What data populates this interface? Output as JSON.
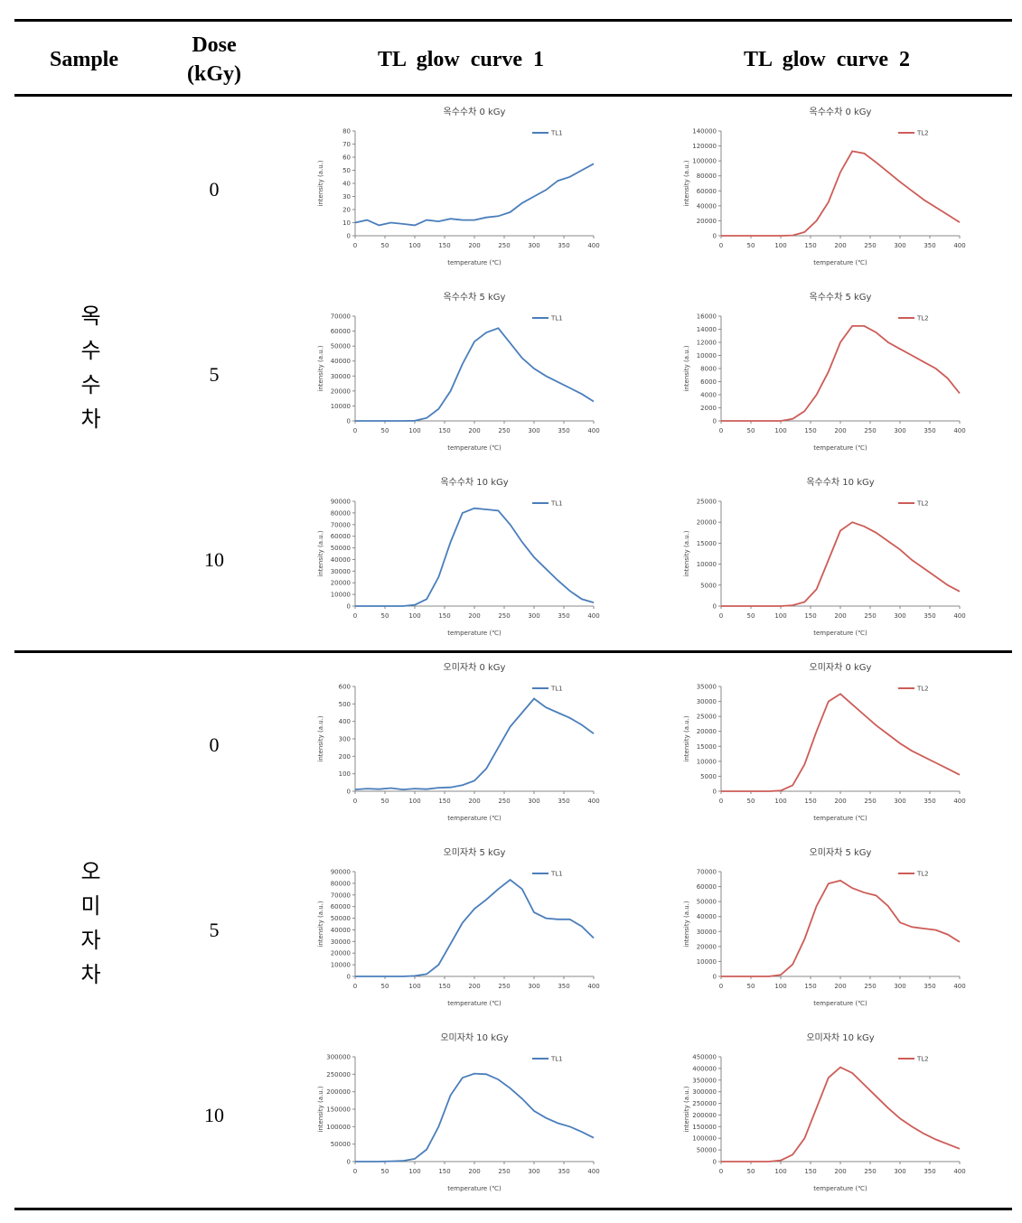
{
  "table": {
    "headers": [
      "Sample",
      "Dose (kGy)",
      "TL glow curve 1",
      "TL glow curve 2"
    ],
    "groups": [
      {
        "sample": "옥수수차",
        "doses": [
          "0",
          "5",
          "10"
        ]
      },
      {
        "sample": "오미자차",
        "doses": [
          "0",
          "5",
          "10"
        ]
      }
    ]
  },
  "chart_data": [
    {
      "type": "line",
      "title": "옥수수차 0 kGy",
      "x_label": "temperature (℃)",
      "y_label": "intensity (a.u.)",
      "x": [
        0,
        20,
        40,
        60,
        80,
        100,
        120,
        140,
        160,
        180,
        200,
        220,
        240,
        260,
        280,
        300,
        320,
        340,
        360,
        380,
        400
      ],
      "xlim": [
        0,
        400
      ],
      "xticks": [
        0,
        50,
        100,
        150,
        200,
        250,
        300,
        350,
        400
      ],
      "ylim": [
        0,
        80
      ],
      "yticks": [
        0,
        10,
        20,
        30,
        40,
        50,
        60,
        70,
        80
      ],
      "series": [
        {
          "name": "TL1",
          "color": "#4a7ebb",
          "values": [
            10,
            12,
            8,
            10,
            9,
            8,
            12,
            11,
            13,
            12,
            12,
            14,
            15,
            18,
            25,
            30,
            35,
            42,
            45,
            50,
            55
          ]
        }
      ]
    },
    {
      "type": "line",
      "title": "옥수수차 0 kGy",
      "x_label": "temperature (℃)",
      "y_label": "intensity (a.u.)",
      "x": [
        0,
        20,
        40,
        60,
        80,
        100,
        120,
        140,
        160,
        180,
        200,
        220,
        240,
        260,
        280,
        300,
        320,
        340,
        360,
        380,
        400
      ],
      "xlim": [
        0,
        400
      ],
      "xticks": [
        0,
        50,
        100,
        150,
        200,
        250,
        300,
        350,
        400
      ],
      "ylim": [
        0,
        140000
      ],
      "yticks": [
        0,
        20000,
        40000,
        60000,
        80000,
        100000,
        120000,
        140000
      ],
      "series": [
        {
          "name": "TL2",
          "color": "#cd5c57",
          "values": [
            0,
            0,
            0,
            0,
            0,
            0,
            500,
            5000,
            20000,
            45000,
            85000,
            113000,
            110000,
            98000,
            85000,
            72000,
            60000,
            48000,
            38000,
            28000,
            18000
          ]
        }
      ]
    },
    {
      "type": "line",
      "title": "옥수수차 5 kGy",
      "x_label": "temperature (℃)",
      "y_label": "intensity (a.u.)",
      "x": [
        0,
        20,
        40,
        60,
        80,
        100,
        120,
        140,
        160,
        180,
        200,
        220,
        240,
        260,
        280,
        300,
        320,
        340,
        360,
        380,
        400
      ],
      "xlim": [
        0,
        400
      ],
      "xticks": [
        0,
        50,
        100,
        150,
        200,
        250,
        300,
        350,
        400
      ],
      "ylim": [
        0,
        70000
      ],
      "yticks": [
        0,
        10000,
        20000,
        30000,
        40000,
        50000,
        60000,
        70000
      ],
      "series": [
        {
          "name": "TL1",
          "color": "#4a7ebb",
          "values": [
            0,
            0,
            0,
            0,
            0,
            100,
            2000,
            8000,
            20000,
            38000,
            53000,
            59000,
            62000,
            52000,
            42000,
            35000,
            30000,
            26000,
            22000,
            18000,
            13000
          ]
        }
      ]
    },
    {
      "type": "line",
      "title": "옥수수차 5 kGy",
      "x_label": "temperature (℃)",
      "y_label": "intensity (a.u.)",
      "x": [
        0,
        20,
        40,
        60,
        80,
        100,
        120,
        140,
        160,
        180,
        200,
        220,
        240,
        260,
        280,
        300,
        320,
        340,
        360,
        380,
        400
      ],
      "xlim": [
        0,
        400
      ],
      "xticks": [
        0,
        50,
        100,
        150,
        200,
        250,
        300,
        350,
        400
      ],
      "ylim": [
        0,
        16000
      ],
      "yticks": [
        0,
        2000,
        4000,
        6000,
        8000,
        10000,
        12000,
        14000,
        16000
      ],
      "series": [
        {
          "name": "TL2",
          "color": "#cd5c57",
          "values": [
            0,
            0,
            0,
            0,
            0,
            0,
            300,
            1500,
            4000,
            7500,
            12000,
            14500,
            14500,
            13500,
            12000,
            11000,
            10000,
            9000,
            8000,
            6500,
            4200
          ]
        }
      ]
    },
    {
      "type": "line",
      "title": "옥수수차 10 kGy",
      "x_label": "temperature (℃)",
      "y_label": "intensity (a.u.)",
      "x": [
        0,
        20,
        40,
        60,
        80,
        100,
        120,
        140,
        160,
        180,
        200,
        220,
        240,
        260,
        280,
        300,
        320,
        340,
        360,
        380,
        400
      ],
      "xlim": [
        0,
        400
      ],
      "xticks": [
        0,
        50,
        100,
        150,
        200,
        250,
        300,
        350,
        400
      ],
      "ylim": [
        0,
        90000
      ],
      "yticks": [
        0,
        10000,
        20000,
        30000,
        40000,
        50000,
        60000,
        70000,
        80000,
        90000
      ],
      "series": [
        {
          "name": "TL1",
          "color": "#4a7ebb",
          "values": [
            0,
            0,
            0,
            0,
            0,
            1000,
            6000,
            25000,
            55000,
            80000,
            84000,
            83000,
            82000,
            70000,
            55000,
            42000,
            32000,
            22000,
            13000,
            6000,
            3000
          ]
        }
      ]
    },
    {
      "type": "line",
      "title": "옥수수차 10 kGy",
      "x_label": "temperature (℃)",
      "y_label": "intensity (a.u.)",
      "x": [
        0,
        20,
        40,
        60,
        80,
        100,
        120,
        140,
        160,
        180,
        200,
        220,
        240,
        260,
        280,
        300,
        320,
        340,
        360,
        380,
        400
      ],
      "xlim": [
        0,
        400
      ],
      "xticks": [
        0,
        50,
        100,
        150,
        200,
        250,
        300,
        350,
        400
      ],
      "ylim": [
        0,
        25000
      ],
      "yticks": [
        0,
        5000,
        10000,
        15000,
        20000,
        25000
      ],
      "series": [
        {
          "name": "TL2",
          "color": "#cd5c57",
          "values": [
            0,
            0,
            0,
            0,
            0,
            0,
            200,
            1000,
            4000,
            11000,
            18000,
            20000,
            19000,
            17500,
            15500,
            13500,
            11000,
            9000,
            7000,
            5000,
            3500
          ]
        }
      ]
    },
    {
      "type": "line",
      "title": "오미자차 0 kGy",
      "x_label": "temperature (℃)",
      "y_label": "intensity (a.u.)",
      "x": [
        0,
        20,
        40,
        60,
        80,
        100,
        120,
        140,
        160,
        180,
        200,
        220,
        240,
        260,
        280,
        300,
        320,
        340,
        360,
        380,
        400
      ],
      "xlim": [
        0,
        400
      ],
      "xticks": [
        0,
        50,
        100,
        150,
        200,
        250,
        300,
        350,
        400
      ],
      "ylim": [
        0,
        600
      ],
      "yticks": [
        0,
        100,
        200,
        300,
        400,
        500,
        600
      ],
      "series": [
        {
          "name": "TL1",
          "color": "#4a7ebb",
          "values": [
            10,
            15,
            12,
            18,
            10,
            15,
            12,
            20,
            22,
            35,
            60,
            130,
            250,
            370,
            450,
            530,
            480,
            450,
            420,
            380,
            330
          ]
        }
      ]
    },
    {
      "type": "line",
      "title": "오미자차 0 kGy",
      "x_label": "temperature (℃)",
      "y_label": "intensity (a.u.)",
      "x": [
        0,
        20,
        40,
        60,
        80,
        100,
        120,
        140,
        160,
        180,
        200,
        220,
        240,
        260,
        280,
        300,
        320,
        340,
        360,
        380,
        400
      ],
      "xlim": [
        0,
        400
      ],
      "xticks": [
        0,
        50,
        100,
        150,
        200,
        250,
        300,
        350,
        400
      ],
      "ylim": [
        0,
        35000
      ],
      "yticks": [
        0,
        5000,
        10000,
        15000,
        20000,
        25000,
        30000,
        35000
      ],
      "series": [
        {
          "name": "TL2",
          "color": "#cd5c57",
          "values": [
            0,
            0,
            0,
            0,
            0,
            200,
            2000,
            9000,
            20000,
            30000,
            32500,
            29000,
            25500,
            22000,
            19000,
            16000,
            13500,
            11500,
            9500,
            7500,
            5500
          ]
        }
      ]
    },
    {
      "type": "line",
      "title": "오미자차 5 kGy",
      "x_label": "temperature (℃)",
      "y_label": "intensity (a.u.)",
      "x": [
        0,
        20,
        40,
        60,
        80,
        100,
        120,
        140,
        160,
        180,
        200,
        220,
        240,
        260,
        280,
        300,
        320,
        340,
        360,
        380,
        400
      ],
      "xlim": [
        0,
        400
      ],
      "xticks": [
        0,
        50,
        100,
        150,
        200,
        250,
        300,
        350,
        400
      ],
      "ylim": [
        0,
        90000
      ],
      "yticks": [
        0,
        10000,
        20000,
        30000,
        40000,
        50000,
        60000,
        70000,
        80000,
        90000
      ],
      "series": [
        {
          "name": "TL1",
          "color": "#4a7ebb",
          "values": [
            0,
            0,
            0,
            0,
            0,
            500,
            2000,
            10000,
            28000,
            46000,
            58000,
            66000,
            75000,
            83000,
            75000,
            55000,
            50000,
            49000,
            49000,
            43000,
            33000
          ]
        }
      ]
    },
    {
      "type": "line",
      "title": "오미자차 5 kGy",
      "x_label": "temperature (℃)",
      "y_label": "intensity (a.u.)",
      "x": [
        0,
        20,
        40,
        60,
        80,
        100,
        120,
        140,
        160,
        180,
        200,
        220,
        240,
        260,
        280,
        300,
        320,
        340,
        360,
        380,
        400
      ],
      "xlim": [
        0,
        400
      ],
      "xticks": [
        0,
        50,
        100,
        150,
        200,
        250,
        300,
        350,
        400
      ],
      "ylim": [
        0,
        70000
      ],
      "yticks": [
        0,
        10000,
        20000,
        30000,
        40000,
        50000,
        60000,
        70000
      ],
      "series": [
        {
          "name": "TL2",
          "color": "#cd5c57",
          "values": [
            0,
            0,
            0,
            0,
            0,
            1000,
            8000,
            25000,
            47000,
            62000,
            64000,
            59000,
            56000,
            54000,
            47000,
            36000,
            33000,
            32000,
            31000,
            28000,
            23000
          ]
        }
      ]
    },
    {
      "type": "line",
      "title": "오미자차 10 kGy",
      "x_label": "temperature (℃)",
      "y_label": "intensity (a.u.)",
      "x": [
        0,
        20,
        40,
        60,
        80,
        100,
        120,
        140,
        160,
        180,
        200,
        220,
        240,
        260,
        280,
        300,
        320,
        340,
        360,
        380,
        400
      ],
      "xlim": [
        0,
        400
      ],
      "xticks": [
        0,
        50,
        100,
        150,
        200,
        250,
        300,
        350,
        400
      ],
      "ylim": [
        0,
        300000
      ],
      "yticks": [
        0,
        50000,
        100000,
        150000,
        200000,
        250000,
        300000
      ],
      "series": [
        {
          "name": "TL1",
          "color": "#4a7ebb",
          "values": [
            0,
            0,
            0,
            1000,
            2000,
            8000,
            35000,
            100000,
            190000,
            240000,
            252000,
            250000,
            235000,
            210000,
            180000,
            145000,
            125000,
            110000,
            100000,
            85000,
            68000
          ]
        }
      ]
    },
    {
      "type": "line",
      "title": "오미자차 10 kGy",
      "x_label": "temperature (℃)",
      "y_label": "intensity (a.u.)",
      "x": [
        0,
        20,
        40,
        60,
        80,
        100,
        120,
        140,
        160,
        180,
        200,
        220,
        240,
        260,
        280,
        300,
        320,
        340,
        360,
        380,
        400
      ],
      "xlim": [
        0,
        400
      ],
      "xticks": [
        0,
        50,
        100,
        150,
        200,
        250,
        300,
        350,
        400
      ],
      "ylim": [
        0,
        450000
      ],
      "yticks": [
        0,
        50000,
        100000,
        150000,
        200000,
        250000,
        300000,
        350000,
        400000,
        450000
      ],
      "series": [
        {
          "name": "TL2",
          "color": "#cd5c57",
          "values": [
            0,
            0,
            0,
            0,
            0,
            5000,
            30000,
            100000,
            230000,
            360000,
            405000,
            380000,
            330000,
            280000,
            230000,
            185000,
            150000,
            120000,
            95000,
            75000,
            55000
          ]
        }
      ]
    }
  ]
}
